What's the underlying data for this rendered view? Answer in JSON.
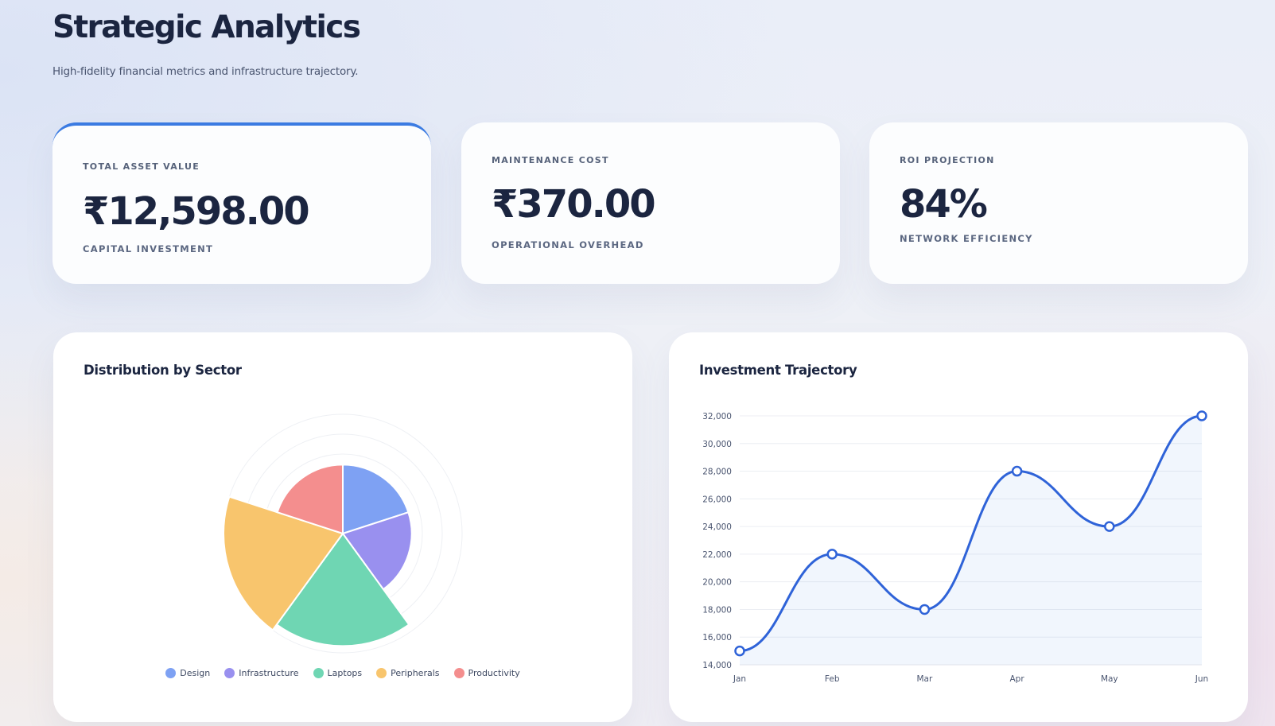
{
  "header": {
    "title": "Strategic Analytics",
    "subtitle": "High-fidelity financial metrics and infrastructure trajectory."
  },
  "kpis": [
    {
      "label": "TOTAL ASSET VALUE",
      "value": "₹12,598.00",
      "foot": "CAPITAL INVESTMENT"
    },
    {
      "label": "MAINTENANCE COST",
      "value": "₹370.00",
      "foot": "OPERATIONAL OVERHEAD"
    },
    {
      "label": "ROI PROJECTION",
      "value": "84%",
      "foot": "NETWORK EFFICIENCY"
    }
  ],
  "colors": {
    "accent": "#3b7be2",
    "line": "#2f63d8",
    "design": "#7ea1f3",
    "infrastructure": "#9990ef",
    "laptops": "#6fd6b3",
    "peripherals": "#f8c56d",
    "productivity": "#f48e8e"
  },
  "chart_data": [
    {
      "type": "polar-area",
      "title": "Distribution by Sector",
      "categories": [
        "Design",
        "Infrastructure",
        "Laptops",
        "Peripherals",
        "Productivity"
      ],
      "values": [
        3,
        3,
        8,
        9,
        3
      ],
      "legend_position": "bottom"
    },
    {
      "type": "line",
      "title": "Investment Trajectory",
      "x": [
        "Jan",
        "Feb",
        "Mar",
        "Apr",
        "May",
        "Jun"
      ],
      "series": [
        {
          "values": [
            15000,
            22000,
            18000,
            28000,
            24000,
            32000
          ]
        }
      ],
      "yticks": [
        "32,000",
        "30,000",
        "28,000",
        "26,000",
        "24,000",
        "22,000",
        "20,000",
        "18,000",
        "16,000",
        "14,000"
      ],
      "ylim": [
        14000,
        32000
      ],
      "grid": true,
      "fill": true,
      "smooth": true
    }
  ]
}
